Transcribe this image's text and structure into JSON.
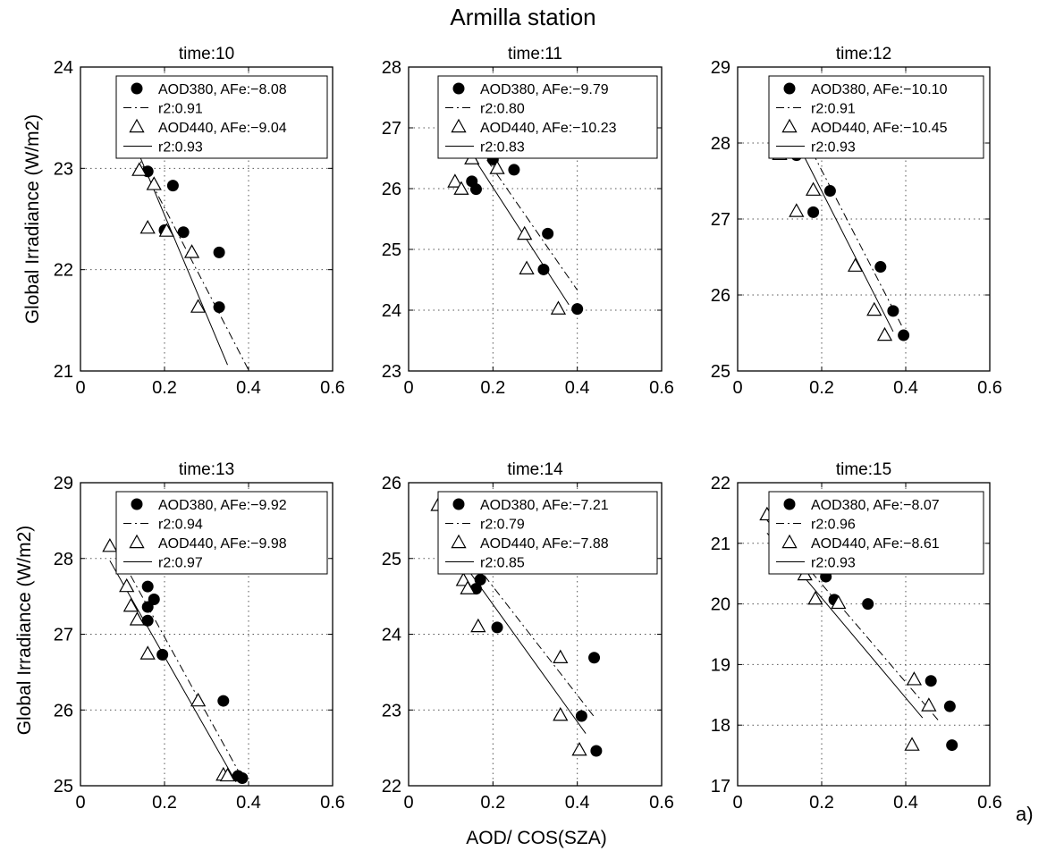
{
  "figure": {
    "title": "Armilla station",
    "ylabel": "Global Irradiance (W/m2)",
    "xlabel": "AOD/ COS(SZA)",
    "panel_label": "a)"
  },
  "chart_data": [
    {
      "type": "scatter",
      "title": "time:10",
      "xlim": [
        0,
        0.6
      ],
      "ylim": [
        21,
        24
      ],
      "xticks": [
        "0",
        "0.2",
        "0.4",
        "0.6"
      ],
      "yticks": [
        "21",
        "22",
        "23",
        "24"
      ],
      "grid": true,
      "legend_position": "top-right",
      "legend": [
        "AOD380, AFe:−8.08",
        "r2:0.91",
        "AOD440, AFe:−9.04",
        "r2:0.93"
      ],
      "series": [
        {
          "marker": "filled-circle",
          "x": [
            0.16,
            0.22,
            0.2,
            0.245,
            0.33,
            0.33
          ],
          "y": [
            22.97,
            22.83,
            22.39,
            22.37,
            22.17,
            21.63
          ]
        },
        {
          "marker": "open-triangle",
          "x": [
            0.14,
            0.175,
            0.16,
            0.205,
            0.265,
            0.28
          ],
          "y": [
            22.98,
            22.84,
            22.41,
            22.38,
            22.17,
            21.63
          ]
        }
      ],
      "fits": [
        {
          "style": "dash-dot",
          "x": [
            0.13,
            0.4
          ],
          "y": [
            23.17,
            21.01
          ]
        },
        {
          "style": "solid",
          "x": [
            0.13,
            0.35
          ],
          "y": [
            23.23,
            21.06
          ]
        }
      ]
    },
    {
      "type": "scatter",
      "title": "time:11",
      "xlim": [
        0,
        0.6
      ],
      "ylim": [
        23,
        28
      ],
      "xticks": [
        "0",
        "0.2",
        "0.4",
        "0.6"
      ],
      "yticks": [
        "23",
        "24",
        "25",
        "26",
        "27",
        "28"
      ],
      "grid": true,
      "legend_position": "top-right",
      "legend": [
        "AOD380, AFe:−9.79",
        "r2:0.80",
        "AOD440, AFe:−10.23",
        "r2:0.83"
      ],
      "series": [
        {
          "marker": "filled-circle",
          "x": [
            0.15,
            0.16,
            0.2,
            0.25,
            0.33,
            0.32,
            0.4
          ],
          "y": [
            26.12,
            25.99,
            26.48,
            26.31,
            25.26,
            24.67,
            24.02
          ]
        },
        {
          "marker": "open-triangle",
          "x": [
            0.11,
            0.125,
            0.15,
            0.21,
            0.275,
            0.28,
            0.355
          ],
          "y": [
            26.11,
            25.99,
            26.49,
            26.33,
            25.25,
            24.68,
            24.02
          ]
        }
      ],
      "fits": [
        {
          "style": "dash-dot",
          "x": [
            0.14,
            0.4
          ],
          "y": [
            26.93,
            24.33
          ]
        },
        {
          "style": "solid",
          "x": [
            0.1,
            0.38
          ],
          "y": [
            27.09,
            24.09
          ]
        }
      ]
    },
    {
      "type": "scatter",
      "title": "time:12",
      "xlim": [
        0,
        0.6
      ],
      "ylim": [
        25,
        29
      ],
      "xticks": [
        "0",
        "0.2",
        "0.4",
        "0.6"
      ],
      "yticks": [
        "25",
        "26",
        "27",
        "28",
        "29"
      ],
      "grid": true,
      "legend_position": "top-right",
      "legend": [
        "AOD380, AFe:−10.10",
        "r2:0.91",
        "AOD440, AFe:−10.45",
        "r2:0.93"
      ],
      "series": [
        {
          "marker": "filled-circle",
          "x": [
            0.14,
            0.18,
            0.22,
            0.34,
            0.37,
            0.395
          ],
          "y": [
            27.84,
            27.09,
            27.37,
            26.37,
            25.79,
            25.47
          ]
        },
        {
          "marker": "open-triangle",
          "x": [
            0.1,
            0.14,
            0.18,
            0.28,
            0.325,
            0.35
          ],
          "y": [
            27.85,
            27.1,
            27.38,
            26.38,
            25.8,
            25.47
          ]
        }
      ],
      "fits": [
        {
          "style": "dash-dot",
          "x": [
            0.16,
            0.39
          ],
          "y": [
            28.07,
            25.6
          ]
        },
        {
          "style": "solid",
          "x": [
            0.13,
            0.37
          ],
          "y": [
            28.13,
            25.52
          ]
        }
      ]
    },
    {
      "type": "scatter",
      "title": "time:13",
      "xlim": [
        0,
        0.6
      ],
      "ylim": [
        25,
        29
      ],
      "xticks": [
        "0",
        "0.2",
        "0.4",
        "0.6"
      ],
      "yticks": [
        "25",
        "26",
        "27",
        "28",
        "29"
      ],
      "grid": true,
      "legend_position": "top-right",
      "legend": [
        "AOD380, AFe:−9.92",
        "r2:0.94",
        "AOD440, AFe:−9.98",
        "r2:0.97"
      ],
      "series": [
        {
          "marker": "filled-circle",
          "x": [
            0.16,
            0.16,
            0.175,
            0.16,
            0.195,
            0.34,
            0.375,
            0.385
          ],
          "y": [
            27.63,
            27.36,
            27.46,
            27.18,
            26.73,
            26.12,
            25.13,
            25.1
          ]
        },
        {
          "marker": "open-triangle",
          "x": [
            0.07,
            0.11,
            0.12,
            0.135,
            0.16,
            0.28,
            0.34,
            0.35
          ],
          "y": [
            28.16,
            27.63,
            27.37,
            27.19,
            26.74,
            26.12,
            25.14,
            25.13
          ]
        }
      ],
      "fits": [
        {
          "style": "dash-dot",
          "x": [
            0.1,
            0.39
          ],
          "y": [
            27.97,
            25.05
          ]
        },
        {
          "style": "solid",
          "x": [
            0.07,
            0.37
          ],
          "y": [
            27.97,
            25.05
          ]
        }
      ]
    },
    {
      "type": "scatter",
      "title": "time:14",
      "xlim": [
        0,
        0.6
      ],
      "ylim": [
        22,
        26
      ],
      "xticks": [
        "0",
        "0.2",
        "0.4",
        "0.6"
      ],
      "yticks": [
        "22",
        "23",
        "24",
        "25",
        "26"
      ],
      "grid": true,
      "legend_position": "top-right",
      "legend": [
        "AOD380, AFe:−7.21",
        "r2:0.79",
        "AOD440, AFe:−7.88",
        "r2:0.85"
      ],
      "series": [
        {
          "marker": "filled-circle",
          "x": [
            0.17,
            0.16,
            0.21,
            0.41,
            0.44,
            0.445
          ],
          "y": [
            24.72,
            24.6,
            24.09,
            22.92,
            23.69,
            22.46
          ]
        },
        {
          "marker": "open-triangle",
          "x": [
            0.07,
            0.13,
            0.14,
            0.165,
            0.36,
            0.36,
            0.405
          ],
          "y": [
            25.7,
            24.71,
            24.6,
            24.1,
            23.69,
            22.93,
            22.47
          ]
        }
      ],
      "fits": [
        {
          "style": "dash-dot",
          "x": [
            0.13,
            0.44
          ],
          "y": [
            25.13,
            22.91
          ]
        },
        {
          "style": "solid",
          "x": [
            0.07,
            0.42
          ],
          "y": [
            25.4,
            22.69
          ]
        }
      ]
    },
    {
      "type": "scatter",
      "title": "time:15",
      "xlim": [
        0,
        0.6
      ],
      "ylim": [
        17,
        22
      ],
      "xticks": [
        "0",
        "0.2",
        "0.4",
        "0.6"
      ],
      "yticks": [
        "17",
        "18",
        "19",
        "20",
        "21",
        "22"
      ],
      "grid": true,
      "legend_position": "top-right",
      "legend": [
        "AOD380, AFe:−8.07",
        "r2:0.96",
        "AOD440, AFe:−8.61",
        "r2:0.93"
      ],
      "series": [
        {
          "marker": "filled-circle",
          "x": [
            0.1,
            0.21,
            0.23,
            0.31,
            0.46,
            0.505,
            0.51
          ],
          "y": [
            21.46,
            20.45,
            20.07,
            20.0,
            18.73,
            18.31,
            17.67
          ]
        },
        {
          "marker": "open-triangle",
          "x": [
            0.07,
            0.16,
            0.185,
            0.24,
            0.42,
            0.455,
            0.415
          ],
          "y": [
            21.47,
            20.48,
            20.08,
            20.01,
            18.75,
            18.32,
            17.67
          ]
        }
      ],
      "fits": [
        {
          "style": "dash-dot",
          "x": [
            0.07,
            0.48
          ],
          "y": [
            21.38,
            18.06
          ]
        },
        {
          "style": "solid",
          "x": [
            0.07,
            0.44
          ],
          "y": [
            21.17,
            18.12
          ]
        }
      ]
    }
  ]
}
